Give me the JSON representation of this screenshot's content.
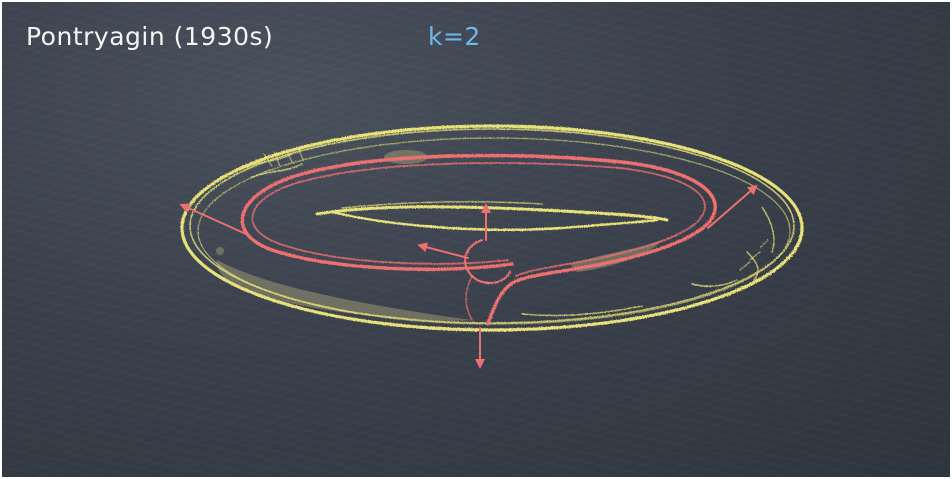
{
  "slide": {
    "title": "Pontryagin (1930s)",
    "k_label": "k=2"
  },
  "colors": {
    "board": "#3a414c",
    "title_text": "#f4f4f2",
    "k_text": "#6fb8e8",
    "torus_chalk": "#e9e27a",
    "curve_chalk": "#ee6f6f",
    "shading": "#9a9572"
  },
  "icons": [
    "torus-outline-drawing",
    "framed-curve-drawing",
    "normal-arrow-icon"
  ]
}
